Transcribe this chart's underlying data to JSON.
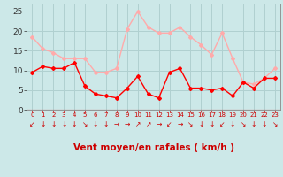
{
  "hours": [
    0,
    1,
    2,
    3,
    4,
    5,
    6,
    7,
    8,
    9,
    10,
    11,
    12,
    13,
    14,
    15,
    16,
    17,
    18,
    19,
    20,
    21,
    22,
    23
  ],
  "wind_avg": [
    9.5,
    11,
    10.5,
    10.5,
    12,
    6,
    4,
    3.5,
    3,
    5.5,
    8.5,
    4,
    3,
    9.5,
    10.5,
    5.5,
    5.5,
    5,
    5.5,
    3.5,
    7,
    5.5,
    8,
    8
  ],
  "wind_gust": [
    18.5,
    15.5,
    14.5,
    13,
    13,
    13,
    9.5,
    9.5,
    10.5,
    20.5,
    25,
    21,
    19.5,
    19.5,
    21,
    18.5,
    16.5,
    14,
    19.5,
    13,
    7,
    6.5,
    8,
    10.5
  ],
  "avg_color": "#ff0000",
  "gust_color": "#ffaaaa",
  "bg_color": "#cce8e8",
  "grid_color": "#b0d0d0",
  "xlabel": "Vent moyen/en rafales ( km/h )",
  "xlabel_color": "#cc0000",
  "ylim": [
    0,
    27
  ],
  "yticks": [
    0,
    5,
    10,
    15,
    20,
    25
  ],
  "arrow_symbols": [
    "↙",
    "↓",
    "↓",
    "↓",
    "↓",
    "↘",
    "↓",
    "↓",
    "→",
    "→",
    "↗",
    "↗",
    "→",
    "↙",
    "→",
    "↘",
    "↓",
    "↓",
    "↙",
    "↓",
    "↘",
    "↓",
    "↓",
    "↘"
  ]
}
